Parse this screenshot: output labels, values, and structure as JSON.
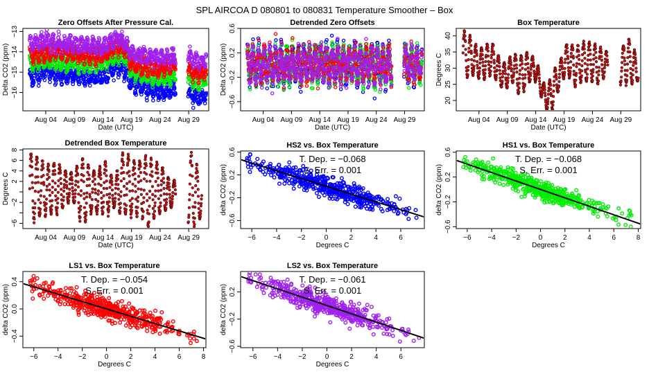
{
  "figure_title": "SPL   AIRCOA D   080801 to 080831   Temperature Smoother – Box",
  "chart_data": [
    {
      "id": "zero-offsets",
      "type": "scatter",
      "title": "Zero Offsets After Pressure Cal.",
      "xlabel": "Date (UTC)",
      "ylabel": "Delta CO2 (ppm)",
      "x_domain": "date",
      "xlim": [
        0.0,
        32.5
      ],
      "ylim": [
        -16.9,
        -12.85
      ],
      "xticks": [
        {
          "pos": 4,
          "label": "Aug 04"
        },
        {
          "pos": 9,
          "label": "Aug 09"
        },
        {
          "pos": 14,
          "label": "Aug 14"
        },
        {
          "pos": 19,
          "label": "Aug 19"
        },
        {
          "pos": 24,
          "label": "Aug 24"
        },
        {
          "pos": 29,
          "label": "Aug 29"
        }
      ],
      "yticks": [
        -13,
        -14,
        -15,
        -16
      ],
      "series": [
        {
          "name": "HS2",
          "color": "#0000ff",
          "level_by_day": [
            [
              1.2,
              -15.3
            ],
            [
              4,
              -14.9
            ],
            [
              6,
              -15.2
            ],
            [
              9,
              -15.2
            ],
            [
              12,
              -15.3
            ],
            [
              14,
              -15.2
            ],
            [
              16.5,
              -14.7
            ],
            [
              18,
              -15.0
            ],
            [
              19,
              -15.6
            ],
            [
              22,
              -15.8
            ],
            [
              24,
              -16.0
            ],
            [
              26.5,
              -15.8
            ],
            [
              29,
              -16.1
            ],
            [
              31,
              -16.3
            ],
            [
              32,
              -16.1
            ]
          ]
        },
        {
          "name": "HS1",
          "color": "#00ee00",
          "level_by_day": [
            [
              1.2,
              -14.6
            ],
            [
              4,
              -14.4
            ],
            [
              6,
              -14.6
            ],
            [
              9,
              -14.5
            ],
            [
              12,
              -14.6
            ],
            [
              14,
              -14.5
            ],
            [
              16.5,
              -14.1
            ],
            [
              18,
              -14.3
            ],
            [
              19,
              -15.0
            ],
            [
              22,
              -15.2
            ],
            [
              24,
              -15.3
            ],
            [
              26.5,
              -15.2
            ],
            [
              29,
              -15.3
            ],
            [
              31,
              -15.5
            ],
            [
              32,
              -15.3
            ]
          ]
        },
        {
          "name": "LS1",
          "color": "#ff0000",
          "level_by_day": [
            [
              1.2,
              -14.2
            ],
            [
              4,
              -14.0
            ],
            [
              6,
              -14.0
            ],
            [
              9,
              -14.1
            ],
            [
              12,
              -14.2
            ],
            [
              14,
              -14.2
            ],
            [
              16.5,
              -13.7
            ],
            [
              18,
              -13.9
            ],
            [
              19,
              -14.6
            ],
            [
              22,
              -14.8
            ],
            [
              24,
              -14.8
            ],
            [
              26.5,
              -14.7
            ],
            [
              29,
              -14.9
            ],
            [
              31,
              -15.1
            ],
            [
              32,
              -14.9
            ]
          ]
        },
        {
          "name": "LS2",
          "color": "#a020f0",
          "level_by_day": [
            [
              1.2,
              -13.6
            ],
            [
              4,
              -13.4
            ],
            [
              6,
              -13.6
            ],
            [
              9,
              -13.6
            ],
            [
              12,
              -13.7
            ],
            [
              14,
              -13.8
            ],
            [
              16.5,
              -13.3
            ],
            [
              18,
              -13.6
            ],
            [
              19,
              -14.1
            ],
            [
              22,
              -14.2
            ],
            [
              24,
              -14.3
            ],
            [
              26.5,
              -14.3
            ],
            [
              29,
              -14.3
            ],
            [
              31,
              -14.5
            ],
            [
              32,
              -14.4
            ]
          ]
        }
      ],
      "data_gap_days": [
        26.7,
        28.9
      ]
    },
    {
      "id": "detrended-zero-offsets",
      "type": "scatter",
      "title": "Detrended Zero Offsets",
      "xlabel": "Date (UTC)",
      "ylabel": "Delta CO2 (ppm)",
      "x_domain": "date",
      "xlim": [
        0.0,
        32.5
      ],
      "ylim": [
        -0.75,
        0.6
      ],
      "xticks": [
        {
          "pos": 4,
          "label": "Aug 04"
        },
        {
          "pos": 9,
          "label": "Aug 09"
        },
        {
          "pos": 14,
          "label": "Aug 14"
        },
        {
          "pos": 19,
          "label": "Aug 19"
        },
        {
          "pos": 24,
          "label": "Aug 24"
        },
        {
          "pos": 29,
          "label": "Aug 29"
        }
      ],
      "yticks": [
        0.6,
        0.2,
        -0.2,
        -0.6
      ],
      "ytick_labels": [
        "0.6",
        "0.2",
        "−0.2",
        "−0.6"
      ],
      "series": [
        {
          "name": "HS2",
          "color": "#0000ff",
          "spread": 0.6
        },
        {
          "name": "HS1",
          "color": "#00ee00",
          "spread": 0.55
        },
        {
          "name": "LS1",
          "color": "#ff0000",
          "spread": 0.45
        },
        {
          "name": "LS2",
          "color": "#a020f0",
          "spread": 0.5
        }
      ],
      "data_gap_days": [
        26.7,
        28.9
      ]
    },
    {
      "id": "box-temperature",
      "type": "scatter",
      "title": "Box Temperature",
      "xlabel": "Date (UTC)",
      "ylabel": "Degrees C",
      "x_domain": "date",
      "xlim": [
        0.0,
        32.5
      ],
      "ylim": [
        16.8,
        42.3
      ],
      "xticks": [
        {
          "pos": 4,
          "label": "Aug 04"
        },
        {
          "pos": 9,
          "label": "Aug 09"
        },
        {
          "pos": 14,
          "label": "Aug 14"
        },
        {
          "pos": 19,
          "label": "Aug 19"
        },
        {
          "pos": 24,
          "label": "Aug 24"
        },
        {
          "pos": 29,
          "label": "Aug 29"
        }
      ],
      "yticks": [
        20,
        25,
        30,
        35,
        40
      ],
      "series": [
        {
          "name": "Box Temperature",
          "color": "#b22222",
          "daily_min_max": [
            [
              1.2,
              29,
              41.5
            ],
            [
              2,
              27,
              41
            ],
            [
              3,
              28,
              38
            ],
            [
              4,
              27,
              36
            ],
            [
              5,
              27,
              36.5
            ],
            [
              6,
              28,
              38.5
            ],
            [
              7,
              26.5,
              36
            ],
            [
              8,
              24,
              31
            ],
            [
              9,
              24,
              32
            ],
            [
              10,
              26,
              35
            ],
            [
              11,
              22,
              33
            ],
            [
              12,
              23,
              35
            ],
            [
              13,
              26,
              34
            ],
            [
              14,
              26,
              33
            ],
            [
              15,
              21,
              27
            ],
            [
              16,
              17,
              23
            ],
            [
              17,
              17,
              30
            ],
            [
              18,
              23,
              30
            ],
            [
              19,
              27,
              37
            ],
            [
              20,
              27,
              38
            ],
            [
              21,
              24,
              36
            ],
            [
              22,
              26,
              38
            ],
            [
              23,
              26,
              38
            ],
            [
              24,
              26,
              38
            ],
            [
              25,
              25,
              37
            ],
            [
              26,
              27,
              35
            ],
            [
              29,
              25,
              36
            ],
            [
              30,
              25,
              39
            ],
            [
              31,
              25,
              38
            ],
            [
              32,
              26,
              32
            ]
          ]
        }
      ],
      "data_gap_days": [
        26.7,
        28.9
      ]
    },
    {
      "id": "detrended-box-temperature",
      "type": "scatter",
      "title": "Detrended Box Temperature",
      "xlabel": "Date (UTC)",
      "ylabel": "Degrees C",
      "x_domain": "date",
      "xlim": [
        0.0,
        32.5
      ],
      "ylim": [
        -7.0,
        8.2
      ],
      "xticks": [
        {
          "pos": 4,
          "label": "Aug 04"
        },
        {
          "pos": 9,
          "label": "Aug 09"
        },
        {
          "pos": 14,
          "label": "Aug 14"
        },
        {
          "pos": 19,
          "label": "Aug 19"
        },
        {
          "pos": 24,
          "label": "Aug 24"
        },
        {
          "pos": 29,
          "label": "Aug 29"
        }
      ],
      "yticks": [
        8,
        6,
        4,
        2,
        0,
        -2,
        -4,
        -6
      ],
      "ytick_labels": [
        "8",
        "6",
        "4",
        "2",
        "",
        "−2",
        "",
        "−6"
      ],
      "series": [
        {
          "name": "Detrended Box Temperature",
          "color": "#b22222",
          "daily_min_max": [
            [
              1.2,
              -6.5,
              7.4
            ],
            [
              2,
              -5.5,
              7
            ],
            [
              3,
              -4.5,
              6.5
            ],
            [
              4,
              -4.5,
              5
            ],
            [
              5,
              -4,
              5
            ],
            [
              6,
              -4,
              6
            ],
            [
              7,
              -3,
              4
            ],
            [
              8,
              -2,
              4
            ],
            [
              9,
              -2,
              3
            ],
            [
              10,
              -5.5,
              7
            ],
            [
              11,
              -5.5,
              5
            ],
            [
              12,
              -4,
              5
            ],
            [
              13,
              -4,
              3
            ],
            [
              14,
              -4,
              6.5
            ],
            [
              15,
              -4,
              4.5
            ],
            [
              16,
              -3,
              1.5
            ],
            [
              17,
              -4,
              6.5
            ],
            [
              18,
              -4.5,
              7.5
            ],
            [
              19,
              -4.5,
              6
            ],
            [
              20,
              -4.5,
              6
            ],
            [
              21,
              -5,
              6.5
            ],
            [
              22,
              -6.5,
              6.5
            ],
            [
              23,
              -5,
              5.5
            ],
            [
              24,
              -4,
              5.5
            ],
            [
              26,
              -3,
              1.5
            ],
            [
              29,
              -6,
              7
            ],
            [
              30,
              -6.5,
              7.8
            ],
            [
              31,
              -5,
              1
            ]
          ]
        }
      ],
      "data_gap_days": [
        26.7,
        28.9
      ]
    },
    {
      "id": "hs2-vs-box",
      "type": "scatter",
      "title": "HS2 vs. Box Temperature",
      "xlabel": "Degrees C",
      "ylabel": "delta CO2 (ppm)",
      "xlim": [
        -6.9,
        7.9
      ],
      "ylim": [
        -0.74,
        0.62
      ],
      "xticks": [
        -6,
        -4,
        -2,
        0,
        2,
        4,
        6
      ],
      "xtick_labels": [
        "−6",
        "−4",
        "−2",
        "0",
        "2",
        "4",
        "6"
      ],
      "yticks": [
        0.6,
        0.2,
        -0.2,
        -0.6
      ],
      "ytick_labels": [
        "0.6",
        "0.2",
        "−0.2",
        "−0.6"
      ],
      "series": [
        {
          "name": "HS2",
          "color": "#0000ff",
          "n_points": 520,
          "noise_sd": 0.085
        }
      ],
      "fit": {
        "slope": -0.068,
        "intercept": 0.0,
        "color": "#000000"
      },
      "annotations": [
        "T. Dep. =  −0.068",
        "S. Err. =  0.001"
      ]
    },
    {
      "id": "hs1-vs-box",
      "type": "scatter",
      "title": "HS1 vs. Box Temperature",
      "xlabel": "Degrees C",
      "ylabel": "delta CO2 (ppm)",
      "xlim": [
        -6.9,
        8.2
      ],
      "ylim": [
        -0.63,
        0.62
      ],
      "xticks": [
        -6,
        -4,
        -2,
        0,
        2,
        4,
        6,
        8
      ],
      "xtick_labels": [
        "−6",
        "−4",
        "−2",
        "0",
        "2",
        "4",
        "6",
        "8"
      ],
      "yticks": [
        0.6,
        0.2,
        -0.2,
        -0.6
      ],
      "ytick_labels": [
        "0.6",
        "0.2",
        "−0.2",
        "−0.6"
      ],
      "series": [
        {
          "name": "HS1",
          "color": "#00ee00",
          "n_points": 520,
          "noise_sd": 0.075
        }
      ],
      "fit": {
        "slope": -0.068,
        "intercept": 0.0,
        "color": "#000000"
      },
      "annotations": [
        "T. Dep. =  −0.068",
        "S. Err. =  0.001"
      ]
    },
    {
      "id": "ls1-vs-box",
      "type": "scatter",
      "title": "LS1 vs. Box Temperature",
      "xlabel": "Degrees C",
      "ylabel": "delta CO2 (ppm)",
      "xlim": [
        -6.9,
        8.2
      ],
      "ylim": [
        -0.57,
        0.55
      ],
      "xticks": [
        -6,
        -4,
        -2,
        0,
        2,
        4,
        6,
        8
      ],
      "xtick_labels": [
        "−6",
        "−4",
        "−2",
        "0",
        "2",
        "4",
        "6",
        "8"
      ],
      "yticks": [
        0.4,
        0.0,
        -0.4
      ],
      "ytick_labels": [
        "0.4",
        "0.0",
        "−0.4"
      ],
      "series": [
        {
          "name": "LS1",
          "color": "#ff0000",
          "n_points": 520,
          "noise_sd": 0.075
        }
      ],
      "fit": {
        "slope": -0.054,
        "intercept": 0.0,
        "color": "#000000"
      },
      "annotations": [
        "T. Dep. =  −0.054",
        "S. Err. =  0.001"
      ]
    },
    {
      "id": "ls2-vs-box",
      "type": "scatter",
      "title": "LS2 vs. Box Temperature",
      "xlabel": "Degrees C",
      "ylabel": "delta CO2 (ppm)",
      "xlim": [
        -7.0,
        7.9
      ],
      "ylim": [
        -0.62,
        0.5
      ],
      "xticks": [
        -6,
        -4,
        -2,
        0,
        2,
        4,
        6
      ],
      "xtick_labels": [
        "−6",
        "−4",
        "−2",
        "0",
        "2",
        "4",
        "6"
      ],
      "yticks": [
        0.2,
        -0.2,
        -0.6
      ],
      "ytick_labels": [
        "0.2",
        "−0.2",
        "−0.6"
      ],
      "series": [
        {
          "name": "LS2",
          "color": "#a020f0",
          "n_points": 520,
          "noise_sd": 0.075
        }
      ],
      "fit": {
        "slope": -0.061,
        "intercept": 0.0,
        "color": "#000000"
      },
      "annotations": [
        "T. Dep. =  −0.061",
        "S. Err. =  0.001"
      ]
    }
  ]
}
